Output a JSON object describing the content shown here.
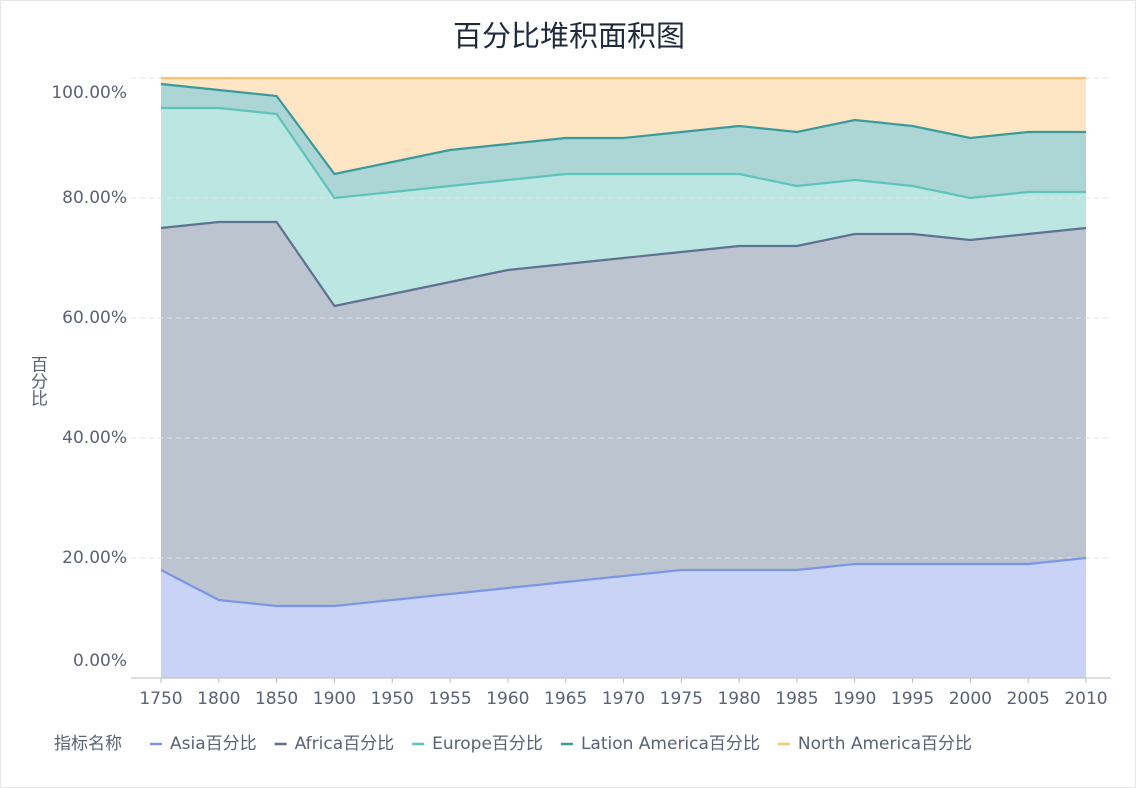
{
  "chart_data": {
    "type": "stacked_area",
    "title": "百分比堆积面积图",
    "y_label": "百分比",
    "legend_title": "指标名称",
    "categories": [
      "1750",
      "1800",
      "1850",
      "1900",
      "1950",
      "1955",
      "1960",
      "1965",
      "1970",
      "1975",
      "1980",
      "1985",
      "1990",
      "1995",
      "2000",
      "2005",
      "2010"
    ],
    "series": [
      {
        "name": "Asia百分比",
        "color": "#7c96e6",
        "values": [
          18,
          13,
          12,
          12,
          13,
          14,
          15,
          16,
          17,
          18,
          18,
          18,
          19,
          19,
          19,
          19,
          20
        ]
      },
      {
        "name": "Africa百分比",
        "color": "#5f7290",
        "values": [
          57,
          63,
          64,
          50,
          51,
          52,
          53,
          53,
          53,
          53,
          54,
          54,
          55,
          55,
          54,
          55,
          55
        ]
      },
      {
        "name": "Europe百分比",
        "color": "#5ec3bb",
        "values": [
          20,
          19,
          18,
          18,
          17,
          16,
          15,
          15,
          14,
          13,
          12,
          10,
          9,
          8,
          7,
          7,
          6
        ]
      },
      {
        "name": "Lation America百分比",
        "color": "#3a9a9c",
        "values": [
          4,
          3,
          3,
          4,
          5,
          6,
          6,
          6,
          6,
          7,
          8,
          9,
          10,
          10,
          10,
          10,
          10
        ]
      },
      {
        "name": "North America百分比",
        "color": "#fdc271",
        "values": [
          1,
          2,
          3,
          16,
          14,
          12,
          11,
          10,
          10,
          9,
          8,
          9,
          7,
          8,
          10,
          9,
          9
        ]
      }
    ],
    "ylim": [
      0,
      100
    ],
    "yticks": [
      {
        "value": 0,
        "label": "0.00%"
      },
      {
        "value": 20,
        "label": "20.00%"
      },
      {
        "value": 40,
        "label": "40.00%"
      },
      {
        "value": 60,
        "label": "60.00%"
      },
      {
        "value": 80,
        "label": "80.00%"
      },
      {
        "value": 100,
        "label": "100.00%"
      }
    ],
    "grid": true,
    "legend": "bottom"
  }
}
